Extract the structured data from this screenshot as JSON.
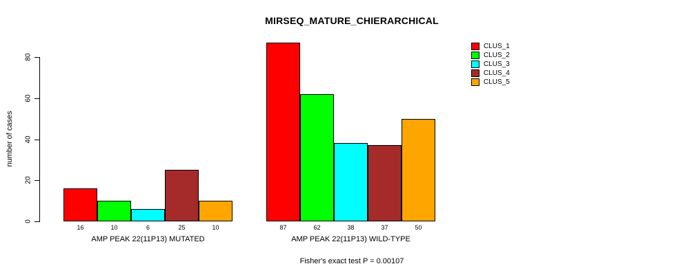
{
  "chart_data": {
    "type": "bar",
    "title": "MIRSEQ_MATURE_CHIERARCHICAL",
    "ylabel": "number of cases",
    "xlabel": "",
    "yticks": [
      0,
      20,
      40,
      60,
      80
    ],
    "ylim": [
      0,
      87
    ],
    "grid": false,
    "legend_position": "topright",
    "legend": [
      {
        "label": "CLUS_1",
        "color": "#FF0000"
      },
      {
        "label": "CLUS_2",
        "color": "#00FF00"
      },
      {
        "label": "CLUS_3",
        "color": "#00FFFF"
      },
      {
        "label": "CLUS_4",
        "color": "#A52A2A"
      },
      {
        "label": "CLUS_5",
        "color": "#FFA500"
      }
    ],
    "groups": [
      {
        "label": "AMP PEAK 22(11P13) MUTATED",
        "values": [
          16,
          10,
          6,
          25,
          10
        ]
      },
      {
        "label": "AMP PEAK 22(11P13) WILD-TYPE",
        "values": [
          87,
          62,
          38,
          37,
          50
        ]
      }
    ],
    "annotation": "Fisher's exact test P = 0.00107",
    "axis_color": "#000000",
    "bar_border_color": "#000000",
    "background_color": "#FFFFFF"
  }
}
